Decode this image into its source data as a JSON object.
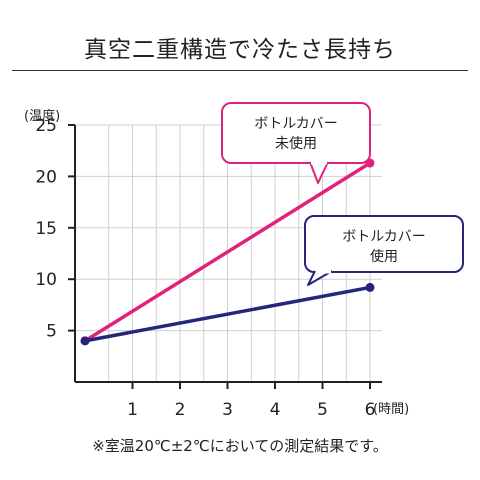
{
  "header": {
    "title": "真空二重構造で冷たさ長持ち"
  },
  "note": "※室温20℃±2℃においての測定結果です。",
  "colors": {
    "uncovered": "#e0227a",
    "covered": "#25257a",
    "grid": "#cfcfcf",
    "axis": "#222222"
  },
  "chart_data": {
    "type": "line",
    "title": "真空二重構造で冷たさ長持ち",
    "xlabel": "(時間)",
    "ylabel": "(温度)",
    "xlim": [
      0,
      6
    ],
    "ylim": [
      0,
      25
    ],
    "xticks": [
      1,
      2,
      3,
      4,
      5,
      6
    ],
    "yticks": [
      5,
      10,
      15,
      20,
      25
    ],
    "grid": true,
    "series": [
      {
        "name": "ボトルカバー未使用",
        "label_lines": [
          "ボトルカバー",
          "未使用"
        ],
        "color": "#e0227a",
        "x": [
          0,
          6
        ],
        "y": [
          4,
          21.3
        ]
      },
      {
        "name": "ボトルカバー使用",
        "label_lines": [
          "ボトルカバー",
          "使用"
        ],
        "color": "#25257a",
        "x": [
          0,
          6
        ],
        "y": [
          4,
          9.2
        ]
      }
    ]
  }
}
